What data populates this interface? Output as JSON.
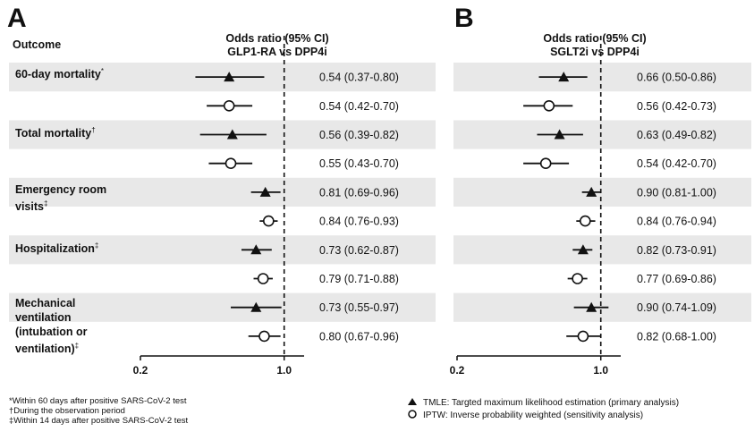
{
  "panels": [
    {
      "letter": "A",
      "header_line1": "Odds ratio (95% CI)",
      "header_line2": "GLP1-RA vs DPP4i"
    },
    {
      "letter": "B",
      "header_line1": "Odds ratio (95% CI)",
      "header_line2": "SGLT2i vs DPP4i"
    }
  ],
  "outcome_header": "Outcome",
  "outcomes": [
    {
      "lines": [
        "60-day mortality"
      ],
      "mark": "*"
    },
    {
      "lines": [
        "Total mortality"
      ],
      "mark": "†"
    },
    {
      "lines": [
        "Emergency room",
        "visits"
      ],
      "mark": "‡"
    },
    {
      "lines": [
        "Hospitalization"
      ],
      "mark": "‡"
    },
    {
      "lines": [
        "Mechanical",
        "ventilation",
        "(intubation or",
        "ventilation)"
      ],
      "mark": "‡"
    }
  ],
  "chart_data": [
    {
      "type": "forest",
      "panel": "A",
      "title": "Odds ratio (95% CI) GLP1-RA vs DPP4i",
      "x_scale": "log",
      "xlim": [
        0.2,
        1.25
      ],
      "x_ticks": [
        "0.2",
        "1.0"
      ],
      "reference_line": 1.0,
      "rows": [
        {
          "method": "TMLE",
          "or": 0.54,
          "lo": 0.37,
          "hi": 0.8,
          "label": "0.54 (0.37-0.80)"
        },
        {
          "method": "IPTW",
          "or": 0.54,
          "lo": 0.42,
          "hi": 0.7,
          "label": "0.54 (0.42-0.70)"
        },
        {
          "method": "TMLE",
          "or": 0.56,
          "lo": 0.39,
          "hi": 0.82,
          "label": "0.56 (0.39-0.82)"
        },
        {
          "method": "IPTW",
          "or": 0.55,
          "lo": 0.43,
          "hi": 0.7,
          "label": "0.55 (0.43-0.70)"
        },
        {
          "method": "TMLE",
          "or": 0.81,
          "lo": 0.69,
          "hi": 0.96,
          "label": "0.81 (0.69-0.96)"
        },
        {
          "method": "IPTW",
          "or": 0.84,
          "lo": 0.76,
          "hi": 0.93,
          "label": "0.84 (0.76-0.93)"
        },
        {
          "method": "TMLE",
          "or": 0.73,
          "lo": 0.62,
          "hi": 0.87,
          "label": "0.73 (0.62-0.87)"
        },
        {
          "method": "IPTW",
          "or": 0.79,
          "lo": 0.71,
          "hi": 0.88,
          "label": "0.79 (0.71-0.88)"
        },
        {
          "method": "TMLE",
          "or": 0.73,
          "lo": 0.55,
          "hi": 0.97,
          "label": "0.73 (0.55-0.97)"
        },
        {
          "method": "IPTW",
          "or": 0.8,
          "lo": 0.67,
          "hi": 0.96,
          "label": "0.80 (0.67-0.96)"
        }
      ]
    },
    {
      "type": "forest",
      "panel": "B",
      "title": "Odds ratio (95% CI) SGLT2i vs DPP4i",
      "x_scale": "log",
      "xlim": [
        0.2,
        1.25
      ],
      "x_ticks": [
        "0.2",
        "1.0"
      ],
      "reference_line": 1.0,
      "rows": [
        {
          "method": "TMLE",
          "or": 0.66,
          "lo": 0.5,
          "hi": 0.86,
          "label": "0.66 (0.50-0.86)"
        },
        {
          "method": "IPTW",
          "or": 0.56,
          "lo": 0.42,
          "hi": 0.73,
          "label": "0.56 (0.42-0.73)"
        },
        {
          "method": "TMLE",
          "or": 0.63,
          "lo": 0.49,
          "hi": 0.82,
          "label": "0.63 (0.49-0.82)"
        },
        {
          "method": "IPTW",
          "or": 0.54,
          "lo": 0.42,
          "hi": 0.7,
          "label": "0.54 (0.42-0.70)"
        },
        {
          "method": "TMLE",
          "or": 0.9,
          "lo": 0.81,
          "hi": 1.0,
          "label": "0.90 (0.81-1.00)"
        },
        {
          "method": "IPTW",
          "or": 0.84,
          "lo": 0.76,
          "hi": 0.94,
          "label": "0.84 (0.76-0.94)"
        },
        {
          "method": "TMLE",
          "or": 0.82,
          "lo": 0.73,
          "hi": 0.91,
          "label": "0.82 (0.73-0.91)"
        },
        {
          "method": "IPTW",
          "or": 0.77,
          "lo": 0.69,
          "hi": 0.86,
          "label": "0.77 (0.69-0.86)"
        },
        {
          "method": "TMLE",
          "or": 0.9,
          "lo": 0.74,
          "hi": 1.09,
          "label": "0.90 (0.74-1.09)"
        },
        {
          "method": "IPTW",
          "or": 0.82,
          "lo": 0.68,
          "hi": 1.0,
          "label": "0.82 (0.68-1.00)"
        }
      ]
    }
  ],
  "footnotes": [
    "*Within 60 days after positive SARS-CoV-2 test",
    "†During the observation period",
    "‡Within 14 days after positive SARS-CoV-2 test"
  ],
  "legend": [
    {
      "marker": "filled-triangle",
      "text": "TMLE: Targted maximum likelihood estimation (primary analysis)"
    },
    {
      "marker": "open-circle",
      "text": "IPTW: Inverse probability weighted (sensitivity analysis)"
    }
  ],
  "colors": {
    "stripe": "#e8e8e8",
    "ink": "#111111"
  }
}
